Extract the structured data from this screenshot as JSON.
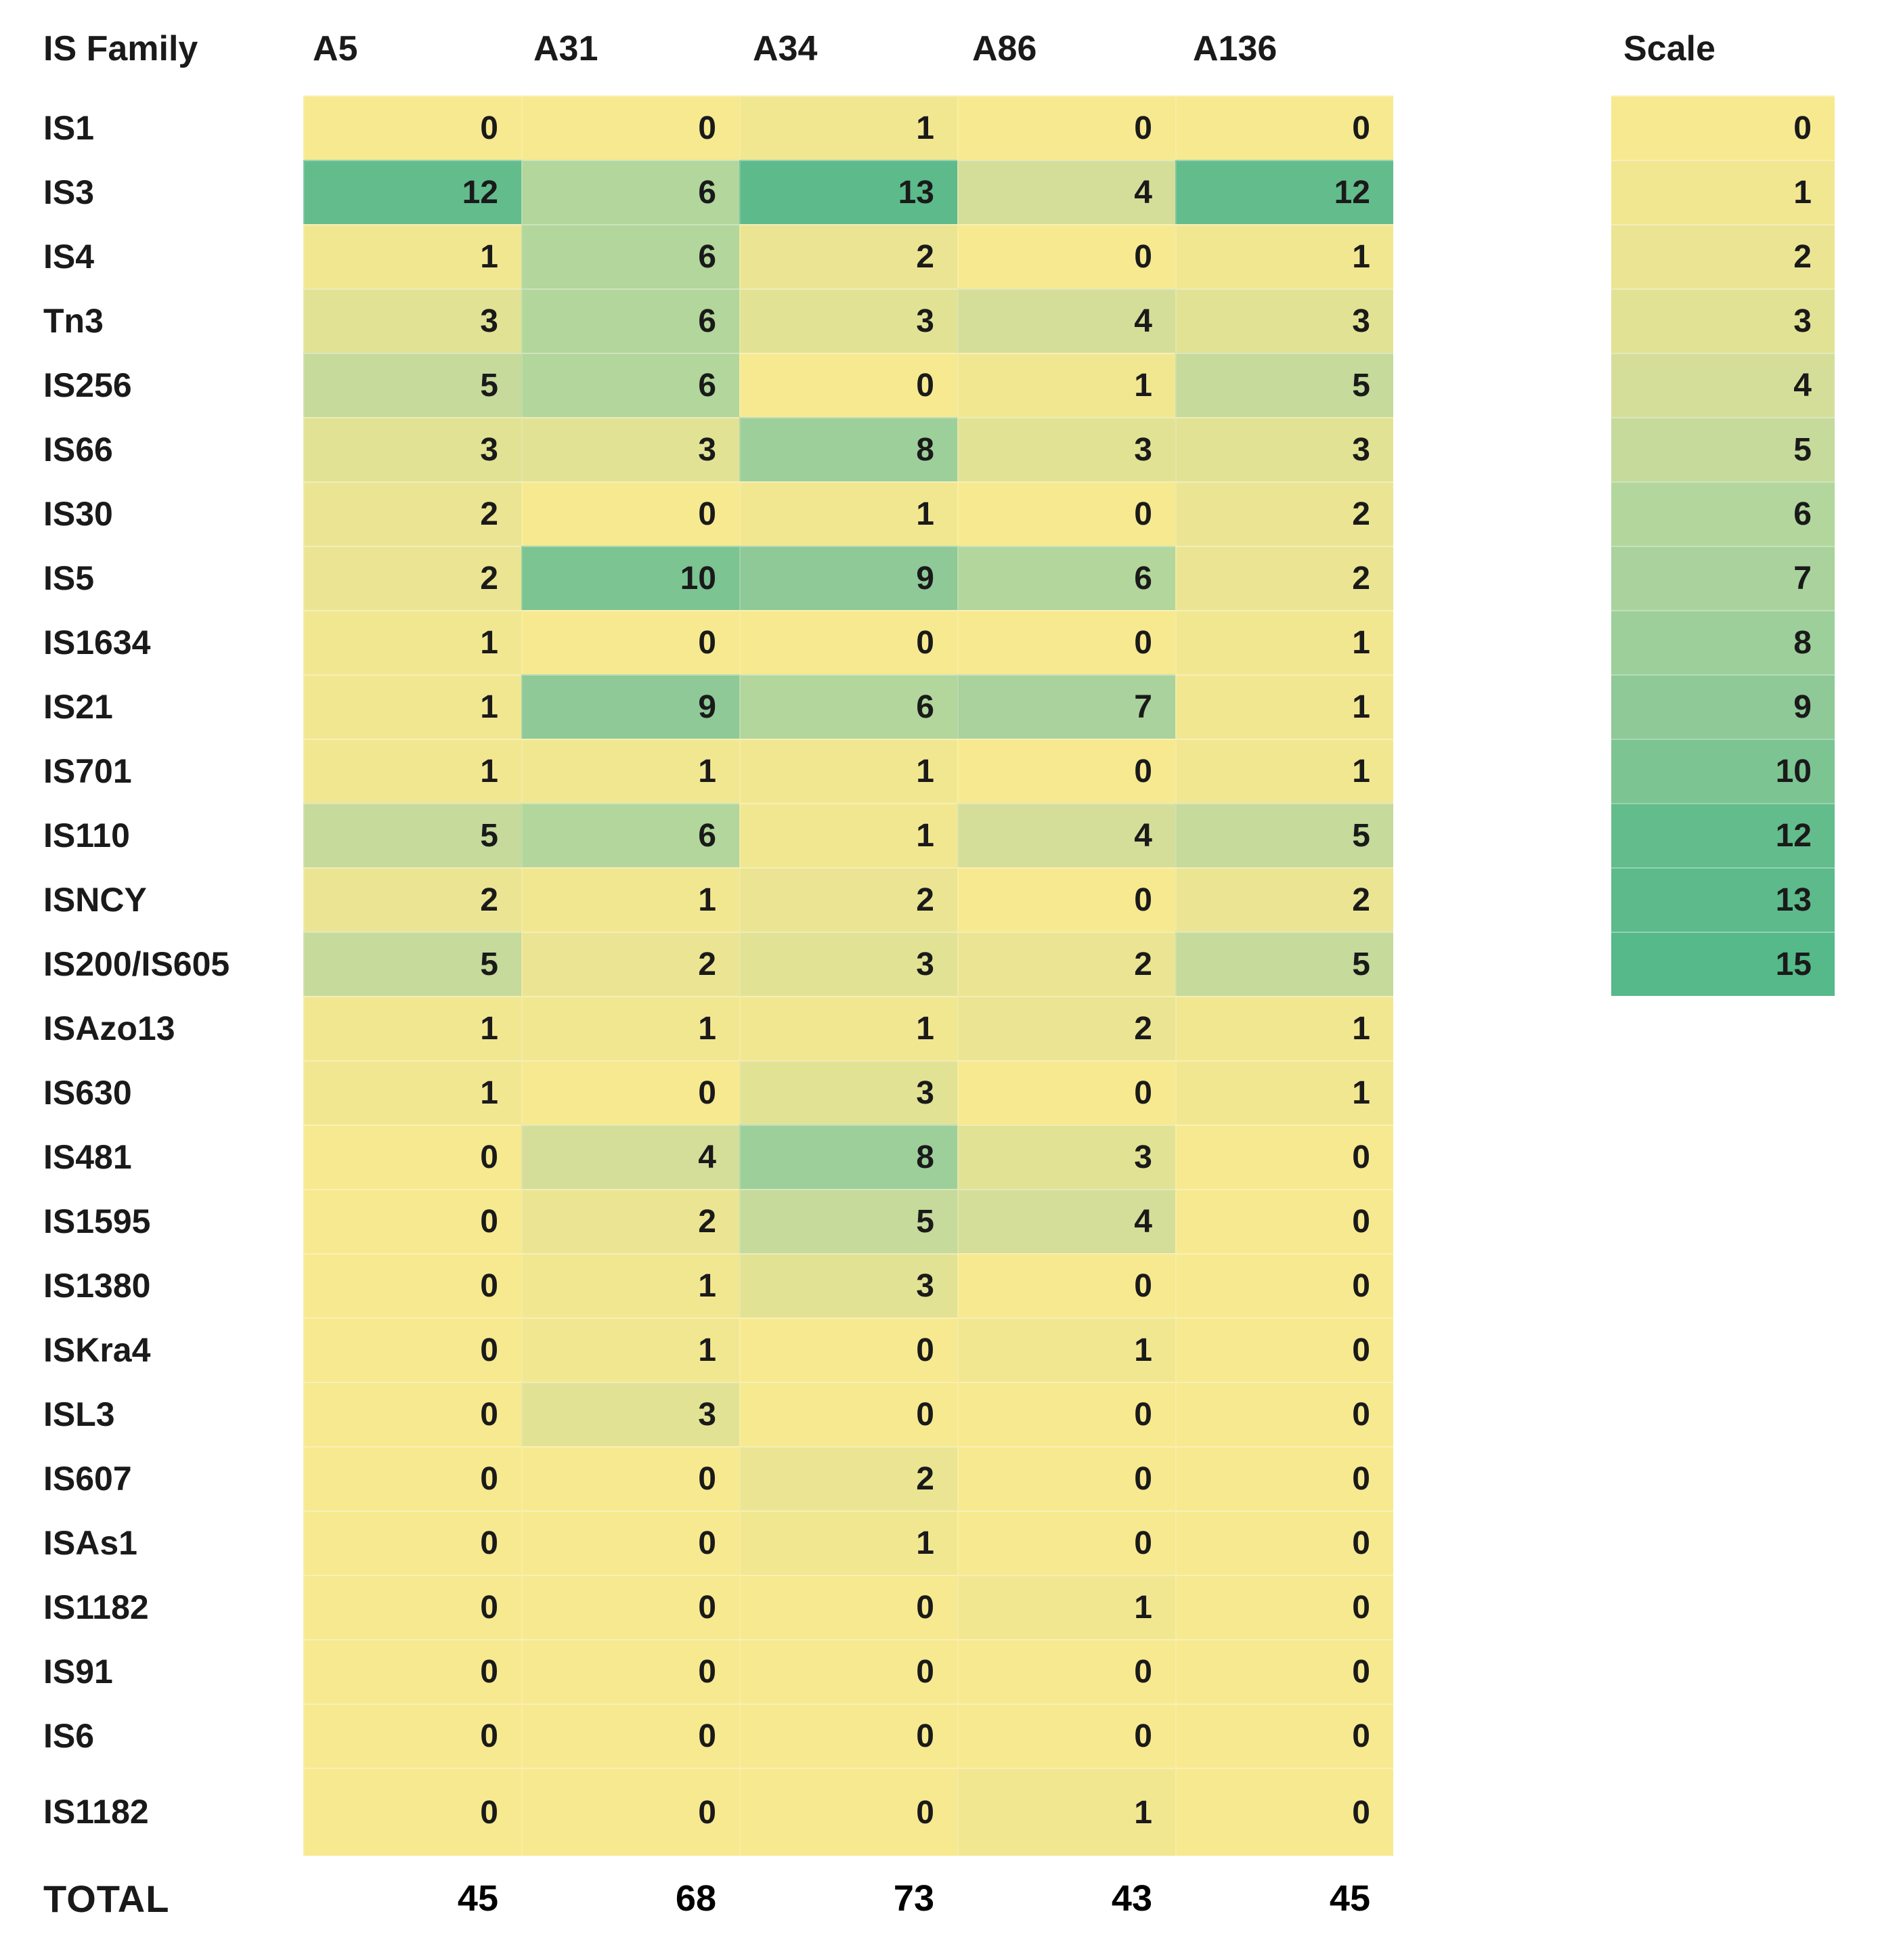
{
  "header": {
    "family": "IS Family",
    "columns": [
      "A5",
      "A31",
      "A34",
      "A86",
      "A136"
    ],
    "scale": "Scale"
  },
  "total_label": "TOTAL",
  "chart_data": {
    "type": "heatmap",
    "title": "IS family element counts per genome with color scale",
    "columns": [
      "A5",
      "A31",
      "A34",
      "A86",
      "A136"
    ],
    "rows": [
      "IS1",
      "IS3",
      "IS4",
      "Tn3",
      "IS256",
      "IS66",
      "IS30",
      "IS5",
      "IS1634",
      "IS21",
      "IS701",
      "IS110",
      "ISNCY",
      "IS200/IS605",
      "ISAzo13",
      "IS630",
      "IS481",
      "IS1595",
      "IS1380",
      "ISKra4",
      "ISL3",
      "IS607",
      "ISAs1",
      "IS1182",
      "IS91",
      "IS6",
      "IS1182"
    ],
    "values": [
      [
        0,
        0,
        1,
        0,
        0
      ],
      [
        12,
        6,
        13,
        4,
        12
      ],
      [
        1,
        6,
        2,
        0,
        1
      ],
      [
        3,
        6,
        3,
        4,
        3
      ],
      [
        5,
        6,
        0,
        1,
        5
      ],
      [
        3,
        3,
        8,
        3,
        3
      ],
      [
        2,
        0,
        1,
        0,
        2
      ],
      [
        2,
        10,
        9,
        6,
        2
      ],
      [
        1,
        0,
        0,
        0,
        1
      ],
      [
        1,
        9,
        6,
        7,
        1
      ],
      [
        1,
        1,
        1,
        0,
        1
      ],
      [
        5,
        6,
        1,
        4,
        5
      ],
      [
        2,
        1,
        2,
        0,
        2
      ],
      [
        5,
        2,
        3,
        2,
        5
      ],
      [
        1,
        1,
        1,
        2,
        1
      ],
      [
        1,
        0,
        3,
        0,
        1
      ],
      [
        0,
        4,
        8,
        3,
        0
      ],
      [
        0,
        2,
        5,
        4,
        0
      ],
      [
        0,
        1,
        3,
        0,
        0
      ],
      [
        0,
        1,
        0,
        1,
        0
      ],
      [
        0,
        3,
        0,
        0,
        0
      ],
      [
        0,
        0,
        2,
        0,
        0
      ],
      [
        0,
        0,
        1,
        0,
        0
      ],
      [
        0,
        0,
        0,
        1,
        0
      ],
      [
        0,
        0,
        0,
        0,
        0
      ],
      [
        0,
        0,
        0,
        0,
        0
      ],
      [
        0,
        0,
        0,
        1,
        0
      ]
    ],
    "totals": [
      45,
      68,
      73,
      43,
      45
    ],
    "legend_title": "Scale",
    "scale_ticks": [
      0,
      1,
      2,
      3,
      4,
      5,
      6,
      7,
      8,
      9,
      10,
      12,
      13,
      15
    ],
    "colormap_range": {
      "min_value": 0,
      "max_value": 15,
      "min_color": "#F7E98F",
      "max_color": "#55B989"
    }
  },
  "scale_colors": {
    "0": "#F7E98F",
    "1": "#F2E791",
    "2": "#EBE593",
    "3": "#E2E295",
    "4": "#D5DE99",
    "5": "#C5DA9B",
    "6": "#B2D69B",
    "7": "#A9D29C",
    "8": "#9DCF9B",
    "9": "#8EC997",
    "10": "#7CC492",
    "12": "#63BC8C",
    "13": "#5CBA8B",
    "15": "#55B989"
  },
  "text_color": "#1A1A1A"
}
